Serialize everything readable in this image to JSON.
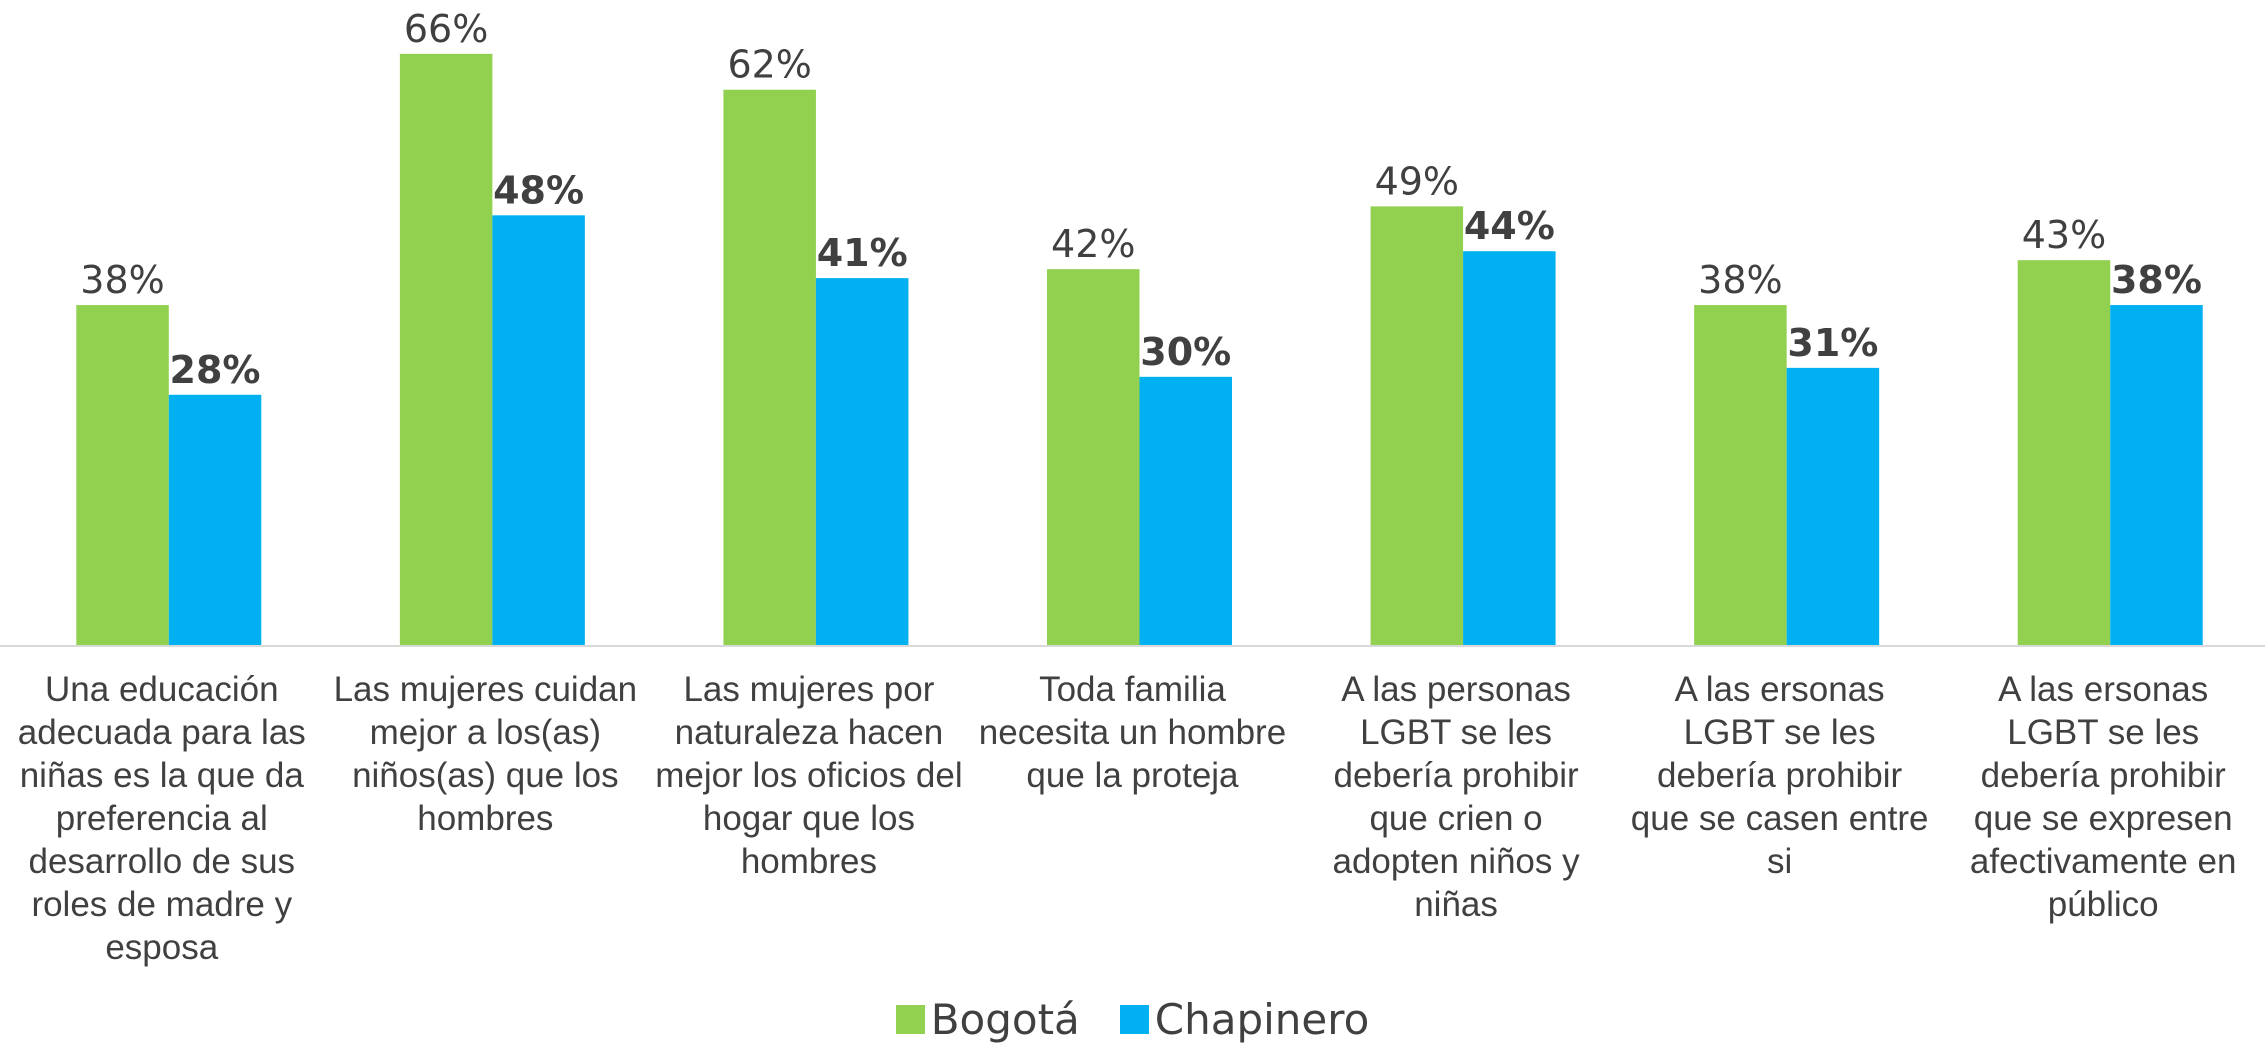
{
  "chart_data": {
    "type": "bar",
    "categories": [
      "Una educación adecuada para las niñas es la que da preferencia al desarrollo de sus roles de madre y esposa",
      "Las mujeres cuidan mejor a los(as) niños(as) que los hombres",
      "Las mujeres por naturaleza hacen mejor los oficios del hogar que los hombres",
      "Toda familia necesita un hombre que la proteja",
      "A las personas LGBT se les debería prohibir que crien o adopten niños y niñas",
      "A las ersonas LGBT se les debería prohibir que se casen entre si",
      "A las ersonas LGBT se les debería prohibir que se expresen afectivamente en público"
    ],
    "series": [
      {
        "name": "Bogotá",
        "color": "#92d050",
        "values": [
          38,
          66,
          62,
          42,
          49,
          38,
          43
        ],
        "value_labels": [
          "38%",
          "66%",
          "62%",
          "42%",
          "49%",
          "38%",
          "43%"
        ]
      },
      {
        "name": "Chapinero",
        "color": "#00b0f0",
        "values": [
          28,
          48,
          41,
          30,
          44,
          31,
          38
        ],
        "value_labels": [
          "28%",
          "48%",
          "41%",
          "30%",
          "44%",
          "31%",
          "38%"
        ]
      }
    ],
    "ylim": [
      0,
      72
    ]
  }
}
